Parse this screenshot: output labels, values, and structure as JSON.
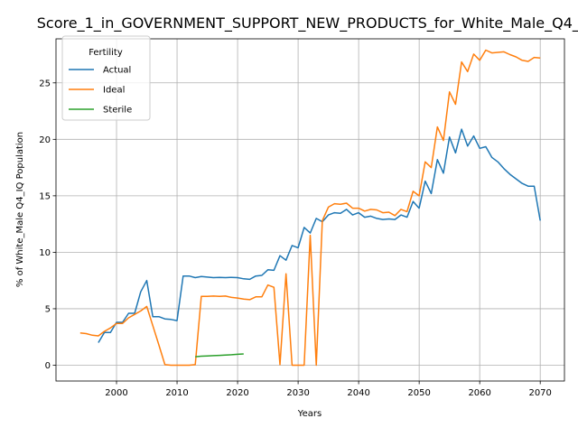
{
  "chart_data": {
    "type": "line",
    "title": "Score_1_in_GOVERNMENT_SUPPORT_NEW_PRODUCTS_for_White_Male_Q4_IQ",
    "xlabel": "Years",
    "ylabel": "% of White_Male Q4_IQ Population",
    "xlim": [
      1990,
      2074
    ],
    "ylim": [
      -1.4,
      28.9
    ],
    "xticks": [
      2000,
      2010,
      2020,
      2030,
      2040,
      2050,
      2060,
      2070
    ],
    "yticks": [
      0,
      5,
      10,
      15,
      20,
      25
    ],
    "grid": true,
    "legend": {
      "title": "Fertility",
      "placement": "upper left"
    },
    "series": [
      {
        "name": "Actual",
        "color": "#1f77b4",
        "points": [
          [
            1997,
            2.0
          ],
          [
            1998,
            2.9
          ],
          [
            1999,
            2.9
          ],
          [
            2000,
            3.8
          ],
          [
            2001,
            3.8
          ],
          [
            2002,
            4.6
          ],
          [
            2003,
            4.6
          ],
          [
            2004,
            6.5
          ],
          [
            2005,
            7.5
          ],
          [
            2006,
            4.3
          ],
          [
            2007,
            4.3
          ],
          [
            2008,
            4.1
          ],
          [
            2009,
            4.05
          ],
          [
            2010,
            3.95
          ],
          [
            2011,
            7.9
          ],
          [
            2012,
            7.9
          ],
          [
            2013,
            7.75
          ],
          [
            2014,
            7.85
          ],
          [
            2015,
            7.8
          ],
          [
            2016,
            7.75
          ],
          [
            2017,
            7.78
          ],
          [
            2018,
            7.75
          ],
          [
            2019,
            7.78
          ],
          [
            2020,
            7.75
          ],
          [
            2021,
            7.65
          ],
          [
            2022,
            7.6
          ],
          [
            2023,
            7.9
          ],
          [
            2024,
            7.95
          ],
          [
            2025,
            8.45
          ],
          [
            2026,
            8.4
          ],
          [
            2027,
            9.7
          ],
          [
            2028,
            9.3
          ],
          [
            2029,
            10.6
          ],
          [
            2030,
            10.4
          ],
          [
            2031,
            12.2
          ],
          [
            2032,
            11.7
          ],
          [
            2033,
            13.0
          ],
          [
            2034,
            12.7
          ],
          [
            2035,
            13.3
          ],
          [
            2036,
            13.5
          ],
          [
            2037,
            13.45
          ],
          [
            2038,
            13.8
          ],
          [
            2039,
            13.3
          ],
          [
            2040,
            13.5
          ],
          [
            2041,
            13.1
          ],
          [
            2042,
            13.2
          ],
          [
            2043,
            13.0
          ],
          [
            2044,
            12.9
          ],
          [
            2045,
            12.95
          ],
          [
            2046,
            12.9
          ],
          [
            2047,
            13.3
          ],
          [
            2048,
            13.1
          ],
          [
            2049,
            14.5
          ],
          [
            2050,
            13.9
          ],
          [
            2051,
            16.3
          ],
          [
            2052,
            15.2
          ],
          [
            2053,
            18.2
          ],
          [
            2054,
            17.0
          ],
          [
            2055,
            20.2
          ],
          [
            2056,
            18.8
          ],
          [
            2057,
            20.9
          ],
          [
            2058,
            19.4
          ],
          [
            2059,
            20.3
          ],
          [
            2060,
            19.2
          ],
          [
            2061,
            19.35
          ],
          [
            2062,
            18.4
          ],
          [
            2063,
            18.0
          ],
          [
            2064,
            17.4
          ],
          [
            2065,
            16.9
          ],
          [
            2066,
            16.5
          ],
          [
            2067,
            16.1
          ],
          [
            2068,
            15.85
          ],
          [
            2069,
            15.85
          ],
          [
            2070,
            12.8
          ]
        ]
      },
      {
        "name": "Ideal",
        "color": "#ff7f0e",
        "points": [
          [
            1994,
            2.85
          ],
          [
            1995,
            2.8
          ],
          [
            1996,
            2.65
          ],
          [
            1997,
            2.6
          ],
          [
            1998,
            3.0
          ],
          [
            1999,
            3.3
          ],
          [
            2000,
            3.7
          ],
          [
            2001,
            3.7
          ],
          [
            2002,
            4.2
          ],
          [
            2003,
            4.5
          ],
          [
            2004,
            4.8
          ],
          [
            2005,
            5.2
          ],
          [
            2006,
            3.5
          ],
          [
            2007,
            1.8
          ],
          [
            2008,
            0.05
          ],
          [
            2009,
            0.0
          ],
          [
            2010,
            0.0
          ],
          [
            2011,
            0.0
          ],
          [
            2012,
            0.0
          ],
          [
            2013,
            0.05
          ],
          [
            2014,
            6.1
          ],
          [
            2015,
            6.1
          ],
          [
            2016,
            6.12
          ],
          [
            2017,
            6.1
          ],
          [
            2018,
            6.12
          ],
          [
            2019,
            6.0
          ],
          [
            2020,
            5.95
          ],
          [
            2021,
            5.85
          ],
          [
            2022,
            5.8
          ],
          [
            2023,
            6.05
          ],
          [
            2024,
            6.05
          ],
          [
            2025,
            7.1
          ],
          [
            2026,
            6.9
          ],
          [
            2027,
            0.05
          ],
          [
            2028,
            8.1
          ],
          [
            2029,
            0.0
          ],
          [
            2030,
            0.0
          ],
          [
            2031,
            0.0
          ],
          [
            2032,
            11.5
          ],
          [
            2033,
            0.0
          ],
          [
            2034,
            12.8
          ],
          [
            2035,
            14.0
          ],
          [
            2036,
            14.3
          ],
          [
            2037,
            14.25
          ],
          [
            2038,
            14.35
          ],
          [
            2039,
            13.9
          ],
          [
            2040,
            13.9
          ],
          [
            2041,
            13.65
          ],
          [
            2042,
            13.8
          ],
          [
            2043,
            13.75
          ],
          [
            2044,
            13.5
          ],
          [
            2045,
            13.55
          ],
          [
            2046,
            13.25
          ],
          [
            2047,
            13.8
          ],
          [
            2048,
            13.6
          ],
          [
            2049,
            15.4
          ],
          [
            2050,
            15.0
          ],
          [
            2051,
            18.0
          ],
          [
            2052,
            17.5
          ],
          [
            2053,
            21.1
          ],
          [
            2054,
            19.9
          ],
          [
            2055,
            24.2
          ],
          [
            2056,
            23.1
          ],
          [
            2057,
            26.85
          ],
          [
            2058,
            26.0
          ],
          [
            2059,
            27.55
          ],
          [
            2060,
            27.0
          ],
          [
            2061,
            27.9
          ],
          [
            2062,
            27.65
          ],
          [
            2063,
            27.7
          ],
          [
            2064,
            27.75
          ],
          [
            2065,
            27.5
          ],
          [
            2066,
            27.3
          ],
          [
            2067,
            27.0
          ],
          [
            2068,
            26.9
          ],
          [
            2069,
            27.25
          ],
          [
            2070,
            27.2
          ]
        ]
      },
      {
        "name": "Sterile",
        "color": "#2ca02c",
        "points": [
          [
            2013,
            0.75
          ],
          [
            2014,
            0.8
          ],
          [
            2015,
            0.82
          ],
          [
            2016,
            0.85
          ],
          [
            2017,
            0.87
          ],
          [
            2018,
            0.9
          ],
          [
            2019,
            0.93
          ],
          [
            2020,
            0.97
          ],
          [
            2021,
            1.0
          ]
        ]
      }
    ]
  }
}
